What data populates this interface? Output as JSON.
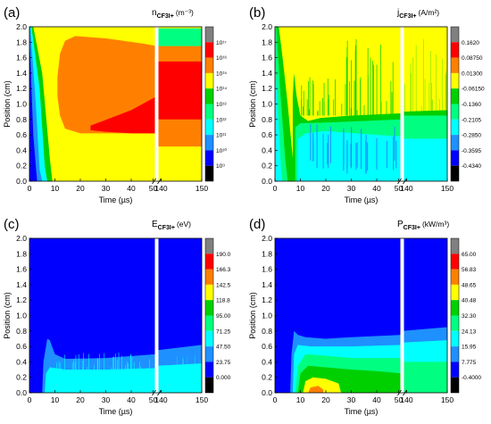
{
  "chart_data": [
    {
      "type": "heatmap",
      "panel_label": "(a)",
      "quantity": "n",
      "subscript": "CF3I+",
      "unit": "(m⁻³)",
      "xlabel": "Time (µs)",
      "ylabel": "Position (cm)",
      "x_ticks": [
        "0",
        "10",
        "20",
        "30",
        "40",
        "50",
        "140",
        "150"
      ],
      "y_ticks": [
        "0.0",
        "0.2",
        "0.4",
        "0.6",
        "0.8",
        "1.0",
        "1.2",
        "1.4",
        "1.6",
        "1.8",
        "2.0"
      ],
      "ylim": [
        0,
        2.0
      ],
      "x_axis": "broken: 0–50 µs then 140–150 µs",
      "colorbar_ticks": [
        "10¹⁷",
        "10¹⁶",
        "10¹⁵",
        "10¹⁴",
        "10¹³",
        "10¹²",
        "10¹¹",
        "10¹⁰",
        "10⁹"
      ],
      "colorbar_colors": [
        "#808080",
        "#ff0000",
        "#ff8000",
        "#ffff00",
        "#00d000",
        "#00ff80",
        "#00ffff",
        "#1e90ff",
        "#0000ff",
        "#000000"
      ],
      "scale": "log"
    },
    {
      "type": "heatmap",
      "panel_label": "(b)",
      "quantity": "j",
      "subscript": "CF3I+",
      "unit": "(A/m²)",
      "xlabel": "Time (µs)",
      "ylabel": "Position (cm)",
      "x_ticks": [
        "0",
        "10",
        "20",
        "30",
        "40",
        "50",
        "140",
        "150"
      ],
      "y_ticks": [
        "0.0",
        "0.2",
        "0.4",
        "0.6",
        "0.8",
        "1.0",
        "1.2",
        "1.4",
        "1.6",
        "1.8",
        "2.0"
      ],
      "ylim": [
        0,
        2.0
      ],
      "colorbar_ticks": [
        "0.1620",
        "0.08750",
        "0.01300",
        "-0.06150",
        "-0.1360",
        "-0.2105",
        "-0.2850",
        "-0.3595",
        "-0.4340"
      ],
      "colorbar_colors": [
        "#808080",
        "#ff0000",
        "#ff8000",
        "#ffff00",
        "#00d000",
        "#00ff80",
        "#00ffff",
        "#1e90ff",
        "#0000ff",
        "#000000"
      ]
    },
    {
      "type": "heatmap",
      "panel_label": "(c)",
      "quantity": "E",
      "subscript": "CF3I+",
      "unit": "(eV)",
      "xlabel": "Time (µs)",
      "ylabel": "Position (cm)",
      "x_ticks": [
        "0",
        "10",
        "20",
        "30",
        "40",
        "50",
        "140",
        "150"
      ],
      "y_ticks": [
        "0.0",
        "0.2",
        "0.4",
        "0.6",
        "0.8",
        "1.0",
        "1.2",
        "1.4",
        "1.6",
        "1.8",
        "2.0"
      ],
      "ylim": [
        0,
        2.0
      ],
      "colorbar_ticks": [
        "190.0",
        "166.3",
        "142.5",
        "118.8",
        "95.00",
        "71.25",
        "47.50",
        "23.75",
        "0.000"
      ],
      "colorbar_colors": [
        "#808080",
        "#ff0000",
        "#ff8000",
        "#ffff00",
        "#00d000",
        "#00ff80",
        "#00ffff",
        "#1e90ff",
        "#0000ff",
        "#000000"
      ]
    },
    {
      "type": "heatmap",
      "panel_label": "(d)",
      "quantity": "P",
      "subscript": "CF3I+",
      "unit": "(kW/m³)",
      "xlabel": "Time (µs)",
      "ylabel": "Position (cm)",
      "x_ticks": [
        "0",
        "10",
        "20",
        "30",
        "40",
        "50",
        "140",
        "150"
      ],
      "y_ticks": [
        "0.0",
        "0.2",
        "0.4",
        "0.6",
        "0.8",
        "1.0",
        "1.2",
        "1.4",
        "1.6",
        "1.8",
        "2.0"
      ],
      "ylim": [
        0,
        2.0
      ],
      "colorbar_ticks": [
        "65.00",
        "56.83",
        "48.65",
        "40.48",
        "32.30",
        "24.13",
        "15.95",
        "7.775",
        "-0.4000"
      ],
      "colorbar_colors": [
        "#808080",
        "#ff0000",
        "#ff8000",
        "#ffff00",
        "#00d000",
        "#00ff80",
        "#00ffff",
        "#1e90ff",
        "#0000ff",
        "#000000"
      ]
    }
  ]
}
